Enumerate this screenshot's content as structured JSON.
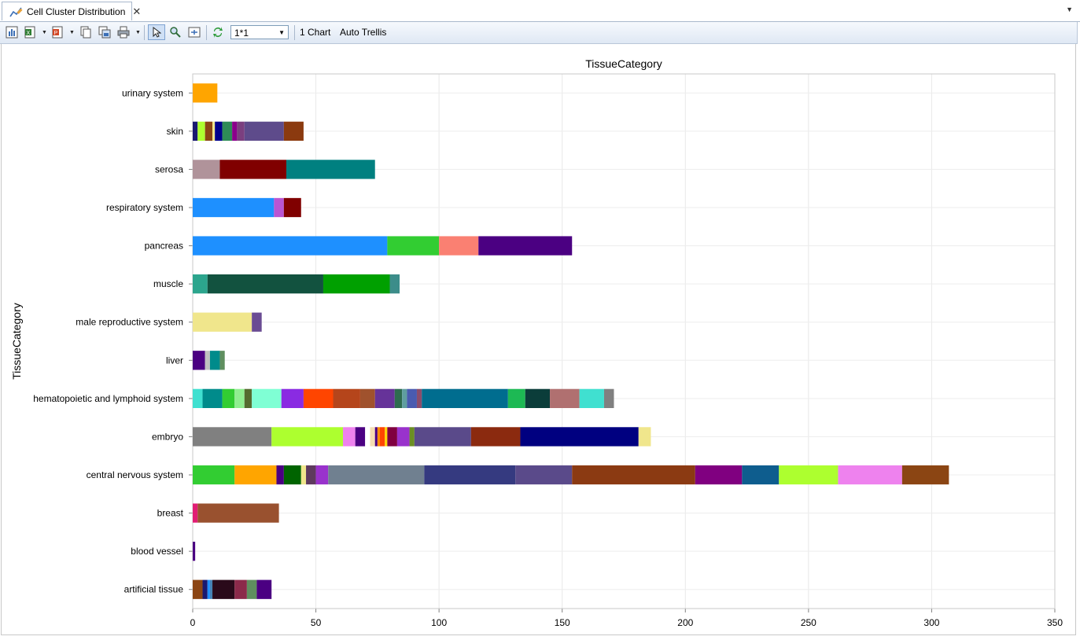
{
  "tab": {
    "title": "Cell Cluster Distribution",
    "close_glyph": "✕",
    "menu_glyph": "▼"
  },
  "toolbar": {
    "layout_select": {
      "value": "1*1"
    },
    "chart_count_label": "1 Chart",
    "trellis_label": "Auto Trellis"
  },
  "chart_data": {
    "type": "bar",
    "orientation": "horizontal",
    "stacked": true,
    "title": "TissueCategory",
    "xlabel": "",
    "ylabel": "TissueCategory",
    "xlim": [
      0,
      350
    ],
    "xticks": [
      0,
      50,
      100,
      150,
      200,
      250,
      300,
      350
    ],
    "grid": true,
    "categories": [
      "urinary system",
      "skin",
      "serosa",
      "respiratory system",
      "pancreas",
      "muscle",
      "male reproductive system",
      "liver",
      "hematopoietic and lymphoid system",
      "embryo",
      "central nervous system",
      "breast",
      "blood vessel",
      "artificial tissue"
    ],
    "stacks": [
      [
        [
          10,
          "#ffa500"
        ]
      ],
      [
        [
          2,
          "#191970"
        ],
        [
          3,
          "#adff2f"
        ],
        [
          3,
          "#8b4513"
        ],
        [
          1,
          "#f0e68c"
        ],
        [
          3,
          "#00008b"
        ],
        [
          4,
          "#2e8b57"
        ],
        [
          2,
          "#8b008b"
        ],
        [
          3,
          "#7b3f7f"
        ],
        [
          16,
          "#5e4b8b"
        ],
        [
          8,
          "#8b3a0f"
        ]
      ],
      [
        [
          11,
          "#b0939a"
        ],
        [
          27,
          "#800000"
        ],
        [
          36,
          "#008080"
        ]
      ],
      [
        [
          33,
          "#1e90ff"
        ],
        [
          4,
          "#ba55d3"
        ],
        [
          7,
          "#800000"
        ]
      ],
      [
        [
          79,
          "#1e90ff"
        ],
        [
          21,
          "#32cd32"
        ],
        [
          16,
          "#fa8072"
        ],
        [
          38,
          "#4b0082"
        ]
      ],
      [
        [
          6,
          "#2ca58d"
        ],
        [
          47,
          "#12523f"
        ],
        [
          27,
          "#00a000"
        ],
        [
          4,
          "#3c8d8a"
        ]
      ],
      [
        [
          24,
          "#f0e68c"
        ],
        [
          4,
          "#6a4c93"
        ]
      ],
      [
        [
          5,
          "#4b0082"
        ],
        [
          2,
          "#c0c0c0"
        ],
        [
          4,
          "#008b8b"
        ],
        [
          2,
          "#5f8f5f"
        ]
      ],
      [
        [
          4,
          "#40e0d0"
        ],
        [
          8,
          "#008b8b"
        ],
        [
          5,
          "#32cd32"
        ],
        [
          4,
          "#90ee90"
        ],
        [
          3,
          "#556b2f"
        ],
        [
          12,
          "#7fffd4"
        ],
        [
          9,
          "#8a2be2"
        ],
        [
          12,
          "#ff4500"
        ],
        [
          11,
          "#b5451b"
        ],
        [
          6,
          "#a0522d"
        ],
        [
          8,
          "#663399"
        ],
        [
          3,
          "#2e6b4f"
        ],
        [
          2,
          "#5f9ea0"
        ],
        [
          4,
          "#4a5bb0"
        ],
        [
          2,
          "#8b4c6b"
        ],
        [
          35,
          "#006d8f"
        ],
        [
          7,
          "#1db954"
        ],
        [
          10,
          "#0b3d3a"
        ],
        [
          12,
          "#b07070"
        ],
        [
          10,
          "#40e0d0"
        ],
        [
          4,
          "#808080"
        ]
      ],
      [
        [
          32,
          "#808080"
        ],
        [
          29,
          "#adff2f"
        ],
        [
          5,
          "#ee82ee"
        ],
        [
          4,
          "#4b0082"
        ],
        [
          2,
          "#ffffff"
        ],
        [
          2,
          "#f5deb3"
        ],
        [
          1,
          "#4b0082"
        ],
        [
          1,
          "#ff8c00"
        ],
        [
          2,
          "#ff4500"
        ],
        [
          1,
          "#ffd700"
        ],
        [
          4,
          "#800040"
        ],
        [
          5,
          "#9932cc"
        ],
        [
          2,
          "#6b8e23"
        ],
        [
          23,
          "#5a4a8a"
        ],
        [
          20,
          "#8b2a0f"
        ],
        [
          48,
          "#000080"
        ],
        [
          5,
          "#f0e68c"
        ]
      ],
      [
        [
          17,
          "#32cd32"
        ],
        [
          17,
          "#ffa500"
        ],
        [
          3,
          "#4b0082"
        ],
        [
          7,
          "#006400"
        ],
        [
          2,
          "#f0e68c"
        ],
        [
          4,
          "#5e3a5e"
        ],
        [
          5,
          "#9932cc"
        ],
        [
          39,
          "#708090"
        ],
        [
          37,
          "#353a80"
        ],
        [
          23,
          "#5a4a8a"
        ],
        [
          50,
          "#8b3a12"
        ],
        [
          19,
          "#800080"
        ],
        [
          15,
          "#0e5d8e"
        ],
        [
          24,
          "#adff2f"
        ],
        [
          26,
          "#ee82ee"
        ],
        [
          19,
          "#8b4513"
        ]
      ],
      [
        [
          2,
          "#e11d74"
        ],
        [
          33,
          "#99512f"
        ]
      ],
      [
        [
          1,
          "#4b0082"
        ]
      ],
      [
        [
          4,
          "#8b4513"
        ],
        [
          2,
          "#191970"
        ],
        [
          1,
          "#1e90ff"
        ],
        [
          1,
          "#4682b4"
        ],
        [
          9,
          "#2a0a1a"
        ],
        [
          5,
          "#8b2a4a"
        ],
        [
          4,
          "#5f8f5f"
        ],
        [
          6,
          "#4b0082"
        ]
      ]
    ]
  }
}
